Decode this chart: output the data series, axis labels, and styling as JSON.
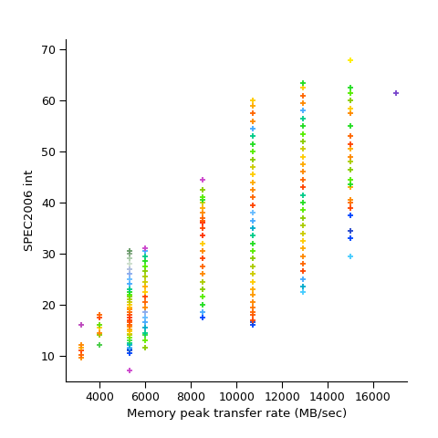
{
  "xlabel": "Memory peak transfer rate (MB/sec)",
  "ylabel": "SPEC2006 int",
  "xlim": [
    2500,
    17500
  ],
  "ylim": [
    5,
    72
  ],
  "xticks": [
    4000,
    6000,
    8000,
    10000,
    12000,
    14000,
    16000
  ],
  "yticks": [
    10,
    20,
    30,
    40,
    50,
    60,
    70
  ],
  "background": "#ffffff",
  "clusters": [
    {
      "x": 3200,
      "y": [
        9.5,
        10.2,
        11.0,
        11.5,
        12.0,
        16.0
      ],
      "colors": [
        "#ff8800",
        "#ff6600",
        "#ff4400",
        "#ffaa00",
        "#ff8800",
        "#bb44bb"
      ]
    },
    {
      "x": 4000,
      "y": [
        12.0,
        14.0,
        14.5,
        15.5,
        16.0,
        17.5,
        18.0
      ],
      "colors": [
        "#44cc44",
        "#88cc00",
        "#ff8800",
        "#ffcc00",
        "#66dd00",
        "#ff4400",
        "#ff6600"
      ]
    },
    {
      "x": 5300,
      "y": [
        7.0,
        10.5,
        11.0,
        11.2,
        11.5,
        12.0,
        12.5,
        13.0,
        13.5,
        14.0,
        14.3,
        14.8,
        15.2,
        15.7,
        16.0,
        16.5,
        17.0,
        17.5,
        18.0,
        18.5,
        19.0,
        19.5,
        20.0,
        20.5,
        21.0,
        21.5,
        22.0,
        22.5,
        23.0,
        24.0,
        25.0,
        26.0,
        27.0,
        28.0,
        29.0,
        30.0,
        30.5
      ],
      "colors": [
        "#cc44cc",
        "#0044ff",
        "#2244cc",
        "#0055dd",
        "#44aaff",
        "#00aacc",
        "#00cc88",
        "#44dd44",
        "#77ee00",
        "#aacc00",
        "#cccc00",
        "#ffcc00",
        "#ffaa00",
        "#ff8800",
        "#ff6600",
        "#ff5500",
        "#ff4400",
        "#ff3300",
        "#ff4400",
        "#ff6600",
        "#ff8800",
        "#ffaa00",
        "#ffcc00",
        "#cccc00",
        "#aacc00",
        "#88cc00",
        "#55ee00",
        "#22dd22",
        "#00cc88",
        "#44aaff",
        "#66bbff",
        "#88aaee",
        "#aabbdd",
        "#ccddcc",
        "#aaccaa",
        "#88aa88",
        "#669966"
      ]
    },
    {
      "x": 6000,
      "y": [
        11.5,
        13.0,
        14.0,
        14.5,
        15.5,
        16.5,
        17.5,
        18.5,
        19.5,
        20.5,
        21.5,
        22.5,
        23.5,
        24.5,
        25.5,
        26.5,
        27.5,
        28.5,
        29.5,
        30.5,
        31.0
      ],
      "colors": [
        "#88cc00",
        "#66ee00",
        "#33dd33",
        "#00cc88",
        "#00aacc",
        "#44aaff",
        "#66bbff",
        "#88aaee",
        "#ff8800",
        "#ff6600",
        "#ff4400",
        "#ffcc00",
        "#ffaa00",
        "#cccc00",
        "#aacc00",
        "#88cc00",
        "#55ee00",
        "#22dd22",
        "#00cc88",
        "#44aaff",
        "#cc44cc"
      ]
    },
    {
      "x": 8500,
      "y": [
        17.5,
        18.5,
        20.0,
        21.5,
        23.0,
        24.5,
        26.0,
        27.5,
        29.0,
        30.5,
        32.0,
        33.5,
        35.0,
        36.0,
        36.5,
        37.0,
        38.0,
        39.0,
        40.0,
        40.5,
        41.0,
        42.5,
        44.5
      ],
      "colors": [
        "#0044ff",
        "#44aaff",
        "#22dd22",
        "#55ee00",
        "#88cc00",
        "#aacc00",
        "#ff8800",
        "#ff6600",
        "#ff4400",
        "#ff8800",
        "#ffcc00",
        "#ff3300",
        "#ff4400",
        "#ff2200",
        "#ff5500",
        "#ff6600",
        "#ff8800",
        "#ffaa00",
        "#cccc00",
        "#22dd22",
        "#55ee00",
        "#88cc00",
        "#cc44cc"
      ]
    },
    {
      "x": 10700,
      "y": [
        16.0,
        16.5,
        17.0,
        18.0,
        18.5,
        19.5,
        20.5,
        22.0,
        23.0,
        24.5,
        26.0,
        27.5,
        29.0,
        30.5,
        32.0,
        33.5,
        35.0,
        36.5,
        38.0,
        39.5,
        41.0,
        42.5,
        44.0,
        45.5,
        47.0,
        48.5,
        50.0,
        51.5,
        53.0,
        54.5,
        56.0,
        57.5,
        59.0,
        60.0
      ],
      "colors": [
        "#0044ff",
        "#2244cc",
        "#ff4400",
        "#ff5500",
        "#ff6600",
        "#ff7700",
        "#ff8800",
        "#ff9900",
        "#ffaa00",
        "#ffcc00",
        "#cccc00",
        "#aacc00",
        "#88cc00",
        "#55ee00",
        "#22dd22",
        "#00cc88",
        "#00aacc",
        "#44aaff",
        "#66bbff",
        "#ff4400",
        "#ff6600",
        "#ff8800",
        "#ffaa00",
        "#ffcc00",
        "#cccc00",
        "#88cc00",
        "#55ee00",
        "#22dd22",
        "#00cc88",
        "#44aaff",
        "#ff8800",
        "#ff6600",
        "#ffaa00",
        "#ffcc00"
      ]
    },
    {
      "x": 12900,
      "y": [
        22.5,
        23.5,
        25.0,
        26.5,
        28.0,
        29.5,
        31.0,
        32.5,
        34.0,
        35.5,
        37.0,
        38.5,
        40.0,
        41.5,
        43.0,
        44.5,
        46.0,
        47.5,
        49.0,
        50.5,
        52.0,
        53.5,
        55.0,
        56.5,
        58.0,
        59.5,
        61.0,
        62.5,
        63.5
      ],
      "colors": [
        "#44ccff",
        "#00aacc",
        "#44aaff",
        "#ff4400",
        "#ff6600",
        "#ff8800",
        "#ffaa00",
        "#ffcc00",
        "#cccc00",
        "#aacc00",
        "#88cc00",
        "#55ee00",
        "#22dd22",
        "#00cc88",
        "#ff4400",
        "#ff6600",
        "#ff8800",
        "#ffaa00",
        "#ffcc00",
        "#cccc00",
        "#88cc00",
        "#55ee00",
        "#22dd22",
        "#00cc88",
        "#44aaff",
        "#ff8800",
        "#ff6600",
        "#ffcc00",
        "#22dd22"
      ]
    },
    {
      "x": 15000,
      "y": [
        29.5,
        33.0,
        34.5,
        37.5,
        39.0,
        40.0,
        40.5,
        43.0,
        43.5,
        44.5,
        46.5,
        48.0,
        49.0,
        50.5,
        51.5,
        53.0,
        55.0,
        57.5,
        58.5,
        60.0,
        61.5,
        62.5,
        68.0
      ],
      "colors": [
        "#44ccff",
        "#0044ff",
        "#2244cc",
        "#0044ff",
        "#ff4400",
        "#ff6600",
        "#ff8800",
        "#ffaa00",
        "#22dd22",
        "#55ee00",
        "#88cc00",
        "#aacc00",
        "#ff8800",
        "#ffaa00",
        "#ff4400",
        "#ff6600",
        "#22dd22",
        "#ff8800",
        "#ffcc00",
        "#88cc00",
        "#55ee00",
        "#22dd22",
        "#ffee00"
      ]
    },
    {
      "x": 17000,
      "y": [
        61.5
      ],
      "colors": [
        "#7744cc"
      ]
    }
  ]
}
